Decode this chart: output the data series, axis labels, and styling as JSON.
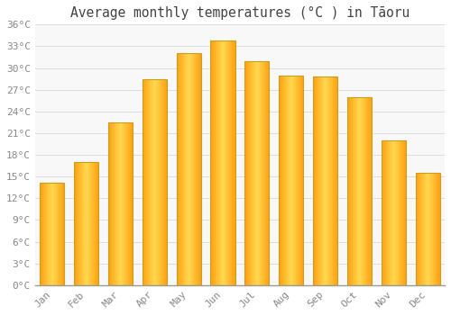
{
  "title": "Average monthly temperatures (°C ) in Tāoru",
  "months": [
    "Jan",
    "Feb",
    "Mar",
    "Apr",
    "May",
    "Jun",
    "Jul",
    "Aug",
    "Sep",
    "Oct",
    "Nov",
    "Dec"
  ],
  "values": [
    14.2,
    17.0,
    22.5,
    28.5,
    32.0,
    33.8,
    31.0,
    29.0,
    28.8,
    26.0,
    20.0,
    15.5
  ],
  "bar_color_main": "#FFA500",
  "bar_color_light": "#FFD040",
  "background_color": "#FFFFFF",
  "plot_bg_color": "#F8F8F8",
  "grid_color": "#DDDDDD",
  "text_color": "#888888",
  "title_color": "#444444",
  "border_color": "#C8A020",
  "ylim": [
    0,
    36
  ],
  "yticks": [
    0,
    3,
    6,
    9,
    12,
    15,
    18,
    21,
    24,
    27,
    30,
    33,
    36
  ],
  "ytick_labels": [
    "0°C",
    "3°C",
    "6°C",
    "9°C",
    "12°C",
    "15°C",
    "18°C",
    "21°C",
    "24°C",
    "27°C",
    "30°C",
    "33°C",
    "36°C"
  ],
  "title_fontsize": 10.5,
  "tick_fontsize": 8
}
